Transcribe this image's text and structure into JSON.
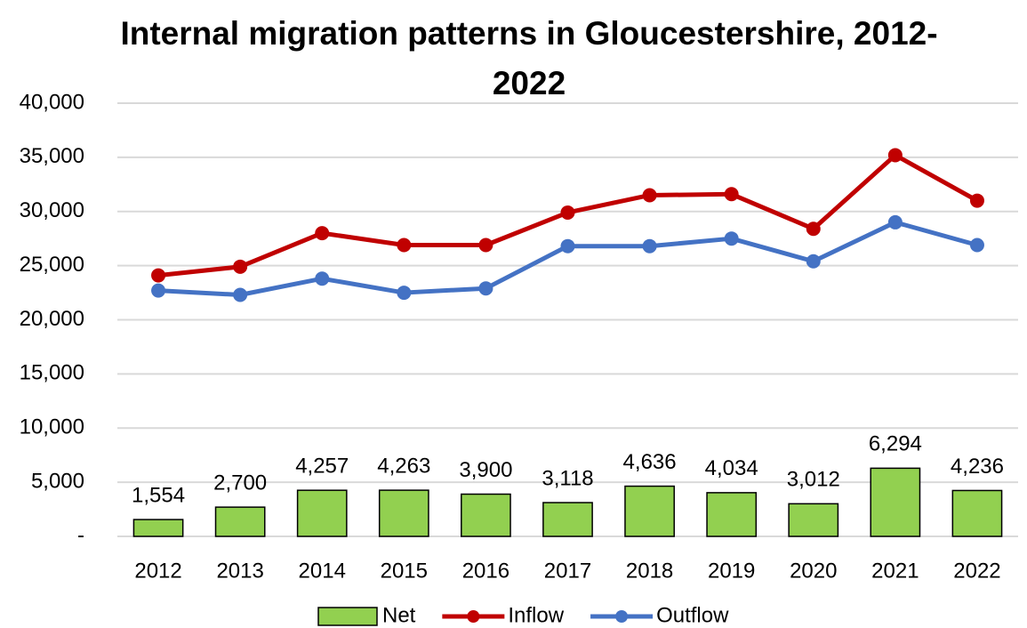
{
  "chart_data": {
    "type": "bar-line",
    "title": "Internal migration patterns in Gloucestershire, 2012-2022",
    "categories": [
      "2012",
      "2013",
      "2014",
      "2015",
      "2016",
      "2017",
      "2018",
      "2019",
      "2020",
      "2021",
      "2022"
    ],
    "series": [
      {
        "name": "Net",
        "type": "bar",
        "color": "#92d050",
        "values": [
          1554,
          2700,
          4257,
          4263,
          3900,
          3118,
          4636,
          4034,
          3012,
          6294,
          4236
        ],
        "value_labels": [
          "1,554",
          "2,700",
          "4,257",
          "4,263",
          "3,900",
          "3,118",
          "4,636",
          "4,034",
          "3,012",
          "6,294",
          "4,236"
        ]
      },
      {
        "name": "Inflow",
        "type": "line",
        "color": "#c00000",
        "values": [
          24100,
          24900,
          28000,
          26900,
          26900,
          29900,
          31500,
          31600,
          28400,
          35200,
          31000
        ]
      },
      {
        "name": "Outflow",
        "type": "line",
        "color": "#4472c4",
        "values": [
          22700,
          22300,
          23800,
          22500,
          22900,
          26800,
          26800,
          27500,
          25400,
          29000,
          26900
        ]
      }
    ],
    "ylim": [
      0,
      40000
    ],
    "yticks": [
      {
        "value": 0,
        "label": "-"
      },
      {
        "value": 5000,
        "label": "5,000"
      },
      {
        "value": 10000,
        "label": "10,000"
      },
      {
        "value": 15000,
        "label": "15,000"
      },
      {
        "value": 20000,
        "label": "20,000"
      },
      {
        "value": 25000,
        "label": "25,000"
      },
      {
        "value": 30000,
        "label": "30,000"
      },
      {
        "value": 35000,
        "label": "35,000"
      },
      {
        "value": 40000,
        "label": "40,000"
      }
    ],
    "grid": true,
    "legend": "bottom"
  }
}
